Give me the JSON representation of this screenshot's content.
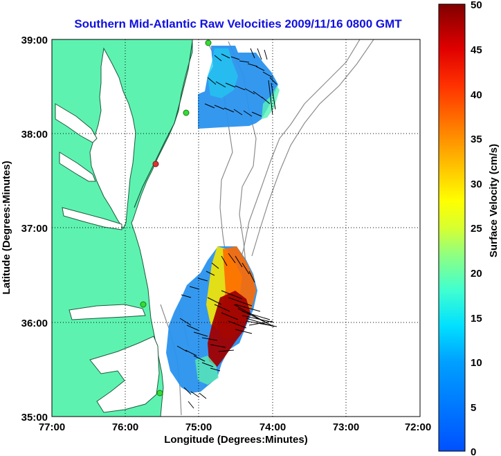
{
  "title": "Southern Mid-Atlantic Raw Velocities 2009/11/16 0800 GMT",
  "x_axis": {
    "label": "Longitude (Degrees:Minutes)",
    "ticks": [
      "77:00",
      "76:00",
      "75:00",
      "74:00",
      "73:00",
      "72:00"
    ]
  },
  "y_axis": {
    "label": "Latitude (Degrees:Minutes)",
    "ticks": [
      "39:00",
      "38:00",
      "37:00",
      "36:00",
      "35:00"
    ]
  },
  "colorbar": {
    "label": "Surface Velocity (cm/s)",
    "ticks": [
      "50",
      "45",
      "40",
      "35",
      "30",
      "25",
      "20",
      "15",
      "10",
      "5",
      "0"
    ],
    "range": [
      0,
      50
    ]
  },
  "map": {
    "lon_range": [
      -77,
      -72
    ],
    "lat_range": [
      35,
      39
    ],
    "land_color": "#5ef2b0",
    "water_color": "#ffffff",
    "grid": "dotted",
    "stations": [
      {
        "lat": 38.95,
        "lon": -75.13,
        "color": "#33dd33"
      },
      {
        "lat": 38.23,
        "lon": -75.16,
        "color": "#33dd33"
      },
      {
        "lat": 37.7,
        "lon": -75.47,
        "color": "#dd3333"
      },
      {
        "lat": 36.2,
        "lon": -75.75,
        "color": "#33dd33"
      },
      {
        "lat": 35.25,
        "lon": -75.53,
        "color": "#33dd33"
      }
    ]
  }
}
